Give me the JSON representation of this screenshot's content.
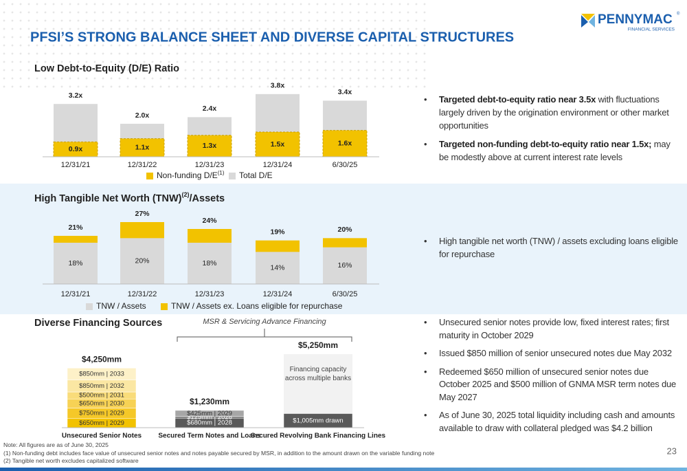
{
  "header": {
    "title": "PFSI’S STRONG BALANCE SHEET AND DIVERSE CAPITAL STRUCTURES",
    "logo": "PENNYMAC",
    "logo_mark": "®",
    "logo_sub": "FINANCIAL SERVICES"
  },
  "chart_data": [
    {
      "type": "bar",
      "overlap": true,
      "title": "Low Debt-to-Equity (D/E) Ratio",
      "categories": [
        "12/31/21",
        "12/31/22",
        "12/31/23",
        "12/31/24",
        "6/30/25"
      ],
      "series": [
        {
          "name": "Non-funding D/E",
          "note": "(1)",
          "color": "#f2c200",
          "values": [
            0.9,
            1.1,
            1.3,
            1.5,
            1.6
          ],
          "value_labels": [
            "0.9x",
            "1.1x",
            "1.3x",
            "1.5x",
            "1.6x"
          ]
        },
        {
          "name": "Total D/E",
          "color": "#d9d9d9",
          "values": [
            3.2,
            2.0,
            2.4,
            3.8,
            3.4
          ],
          "value_labels": [
            "3.2x",
            "2.0x",
            "2.4x",
            "3.8x",
            "3.4x"
          ]
        }
      ],
      "ylim": [
        0,
        4
      ]
    },
    {
      "type": "bar",
      "overlap": true,
      "title": "High Tangible Net Worth (TNW)",
      "title_note": "(2)",
      "title_suffix": "/Assets",
      "categories": [
        "12/31/21",
        "12/31/22",
        "12/31/23",
        "12/31/24",
        "6/30/25"
      ],
      "series": [
        {
          "name": "TNW / Assets",
          "color": "#d9d9d9",
          "values": [
            18,
            20,
            18,
            14,
            16
          ],
          "value_labels": [
            "18%",
            "20%",
            "18%",
            "14%",
            "16%"
          ]
        },
        {
          "name": "TNW / Assets ex. Loans eligible for repurchase",
          "color": "#f2c200",
          "values": [
            21,
            27,
            24,
            19,
            20
          ],
          "value_labels": [
            "21%",
            "27%",
            "24%",
            "19%",
            "20%"
          ]
        }
      ],
      "ylim": [
        0,
        30
      ]
    },
    {
      "type": "stacked-bar",
      "title": "Diverse Financing Sources",
      "annotation": "MSR & Servicing Advance Financing",
      "bars": [
        {
          "category": "Unsecured Senior Notes",
          "total": 4250,
          "total_label": "$4,250mm",
          "color": "#fdf1c8",
          "segments": [
            {
              "value": 650,
              "label": "$650mm | 2029",
              "color": "#f2c200"
            },
            {
              "value": 750,
              "label": "$750mm | 2029",
              "color": "#f5c828"
            },
            {
              "value": 650,
              "label": "$650mm | 2030",
              "color": "#f7d255"
            },
            {
              "value": 500,
              "label": "$500mm | 2031",
              "color": "#f9dc7a"
            },
            {
              "value": 850,
              "label": "$850mm | 2032",
              "color": "#fbe7a3"
            },
            {
              "value": 850,
              "label": "$850mm | 2033",
              "color": "#fdf1c8"
            }
          ]
        },
        {
          "category": "Secured Term Notes and Loans",
          "total": 1230,
          "total_label": "$1,230mm",
          "color": "#a6a6a6",
          "segments": [
            {
              "value": 680,
              "label": "$680mm | 2028",
              "color": "#595959"
            },
            {
              "value": 125,
              "label": "$125mm | 2028",
              "color": "#7f7f7f"
            },
            {
              "value": 425,
              "label": "$425mm | 2029",
              "color": "#a6a6a6"
            }
          ]
        },
        {
          "category": "Secured Revolving Bank Financing Lines",
          "total": 5250,
          "total_label": "$5,250mm",
          "color": "#f2f2f2",
          "capacity_label": "Financing capacity across multiple banks",
          "segments": [
            {
              "value": 1005,
              "label": "$1,005mm drawn",
              "color": "#595959"
            }
          ]
        }
      ],
      "ylim": [
        0,
        5250
      ]
    }
  ],
  "bullets": [
    [
      {
        "bold": "Targeted debt-to-equity ratio near 3.5x",
        "text": " with fluctuations largely driven by the origination environment or other market opportunities"
      },
      {
        "bold": "Targeted non-funding debt-to-equity ratio near 1.5x;",
        "text": " may be modestly above at current interest rate levels"
      }
    ],
    [
      {
        "text": "High tangible net worth (TNW) / assets excluding loans eligible for repurchase"
      }
    ],
    [
      {
        "text": "Unsecured senior notes provide low, fixed interest rates; first maturity in October 2029"
      },
      {
        "text": "Issued $850 million of senior unsecured notes due May 2032"
      },
      {
        "text": "Redeemed $650 million of unsecured senior notes due October 2025 and $500 million of GNMA MSR term notes due May 2027"
      },
      {
        "text": "As of June 30, 2025 total liquidity including cash and amounts available to draw with collateral pledged was $4.2 billion"
      }
    ]
  ],
  "footnotes": [
    "Note: All figures are as of June 30, 2025",
    "(1) Non-funding debt includes face value of unsecured senior notes and notes payable secured by MSR, in addition to the amount drawn on the variable funding note",
    "(2) Tangible net worth excludes capitalized software"
  ],
  "page_number": "23"
}
